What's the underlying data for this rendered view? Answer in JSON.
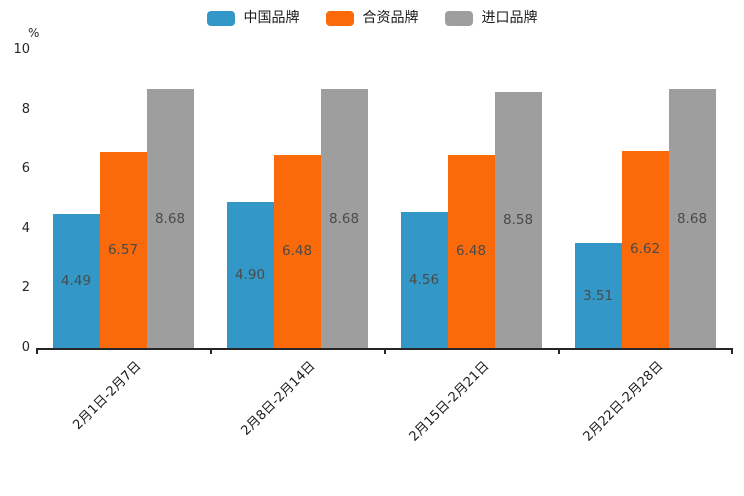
{
  "chart_data": {
    "type": "bar",
    "title": "",
    "xlabel": "",
    "ylabel": "%",
    "categories": [
      "2月1日-2月7日",
      "2月8日-2月14日",
      "2月15日-2月21日",
      "2月22日-2月28日"
    ],
    "series": [
      {
        "name": "中国品牌",
        "color": "#3398C8",
        "values": [
          4.49,
          4.9,
          4.56,
          3.51
        ]
      },
      {
        "name": "合资品牌",
        "color": "#FB6A0A",
        "values": [
          6.57,
          6.48,
          6.48,
          6.62
        ]
      },
      {
        "name": "进口品牌",
        "color": "#9E9E9E",
        "values": [
          8.68,
          8.68,
          8.58,
          8.68
        ]
      }
    ],
    "ylim": [
      0,
      10
    ],
    "yticks": [
      0,
      2,
      4,
      6,
      8,
      10
    ],
    "grid": false,
    "legend_position": "top-center",
    "value_labels": true,
    "value_label_decimals": 2,
    "value_label_color": "#4a4a4a",
    "axis_color": "#262626"
  }
}
